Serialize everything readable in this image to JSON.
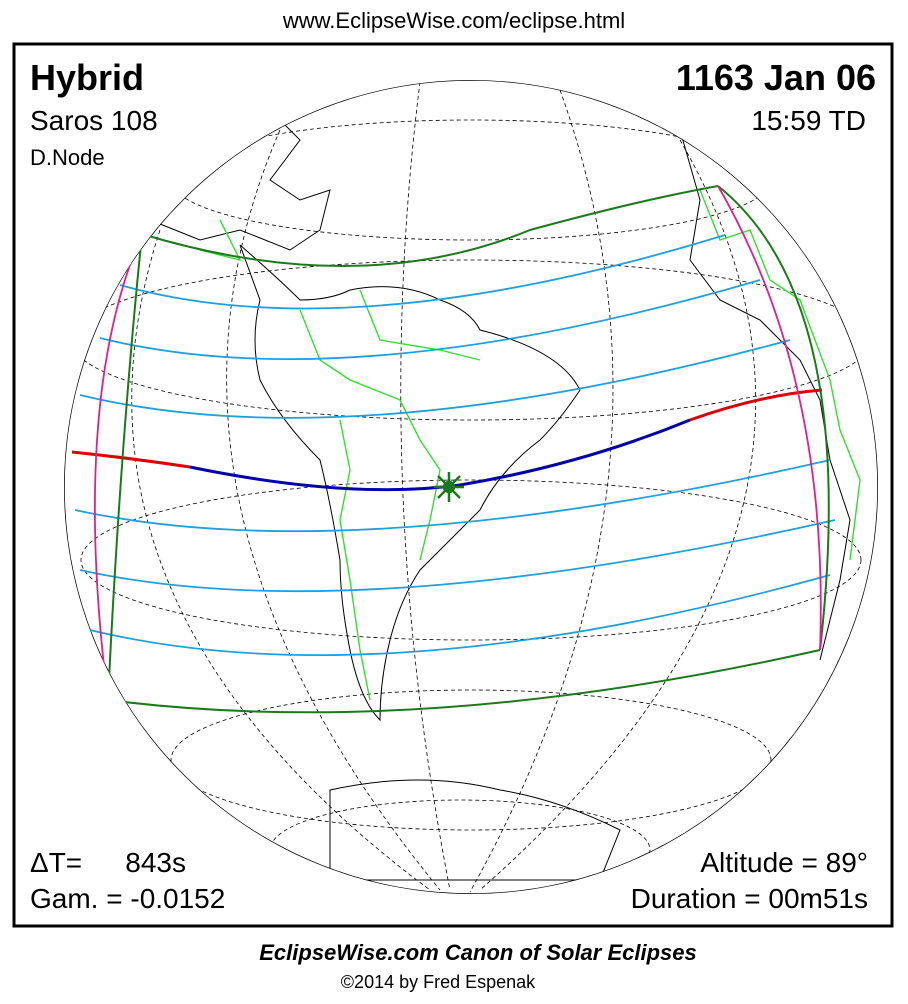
{
  "header": {
    "url": "www.EclipseWise.com/eclipse.html"
  },
  "eclipse": {
    "type": "Hybrid",
    "saros": "Saros 108",
    "node": "D.Node",
    "date": "1163 Jan 06",
    "time": "15:59 TD",
    "delta_t_label": "ΔT=",
    "delta_t": "843s",
    "gamma": "Gam. = -0.0152",
    "altitude": "Altitude = 89°",
    "duration": "Duration = 00m51s"
  },
  "footer": {
    "title": "EclipseWise.com Canon of Solar Eclipses",
    "credit": "©2014 by Fred Espenak"
  }
}
